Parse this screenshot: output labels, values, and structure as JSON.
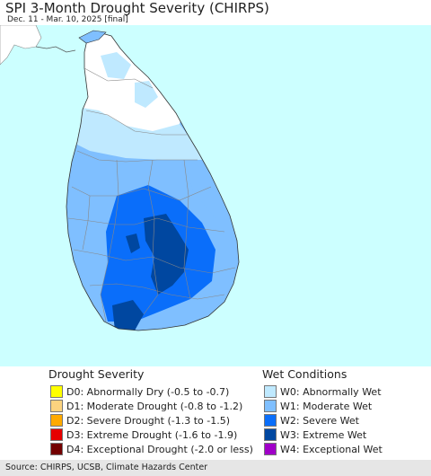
{
  "title": "SPI 3-Month Drought Severity (CHIRPS)",
  "subtitle": "Dec. 11 - Mar. 10, 2025 [final]",
  "map": {
    "region": "Sri Lanka",
    "ocean_color": "#ccffff",
    "neighbor_land_color": "#ffffff",
    "boundary_color": "#888888"
  },
  "legend": {
    "drought_heading": "Drought Severity",
    "wet_heading": "Wet Conditions",
    "drought_items": [
      {
        "label": "D0: Abnormally Dry (-0.5 to -0.7)",
        "color": "#ffff00"
      },
      {
        "label": "D1: Moderate Drought (-0.8 to -1.2)",
        "color": "#fcd37f"
      },
      {
        "label": "D2: Severe Drought (-1.3 to -1.5)",
        "color": "#ffaa00"
      },
      {
        "label": "D3: Extreme Drought (-1.6 to -1.9)",
        "color": "#e60000"
      },
      {
        "label": "D4: Exceptional Drought (-2.0 or less)",
        "color": "#730000"
      }
    ],
    "wet_items": [
      {
        "label": "W0: Abnormally Wet",
        "color": "#bfe9ff"
      },
      {
        "label": "W1: Moderate Wet",
        "color": "#7fbfff"
      },
      {
        "label": "W2: Severe Wet",
        "color": "#0a6efa"
      },
      {
        "label": "W3: Extreme Wet",
        "color": "#0047a0"
      },
      {
        "label": "W4: Exceptional Wet",
        "color": "#a000c8"
      }
    ]
  },
  "source": "Source: CHIRPS, UCSB, Climate Hazards Center"
}
